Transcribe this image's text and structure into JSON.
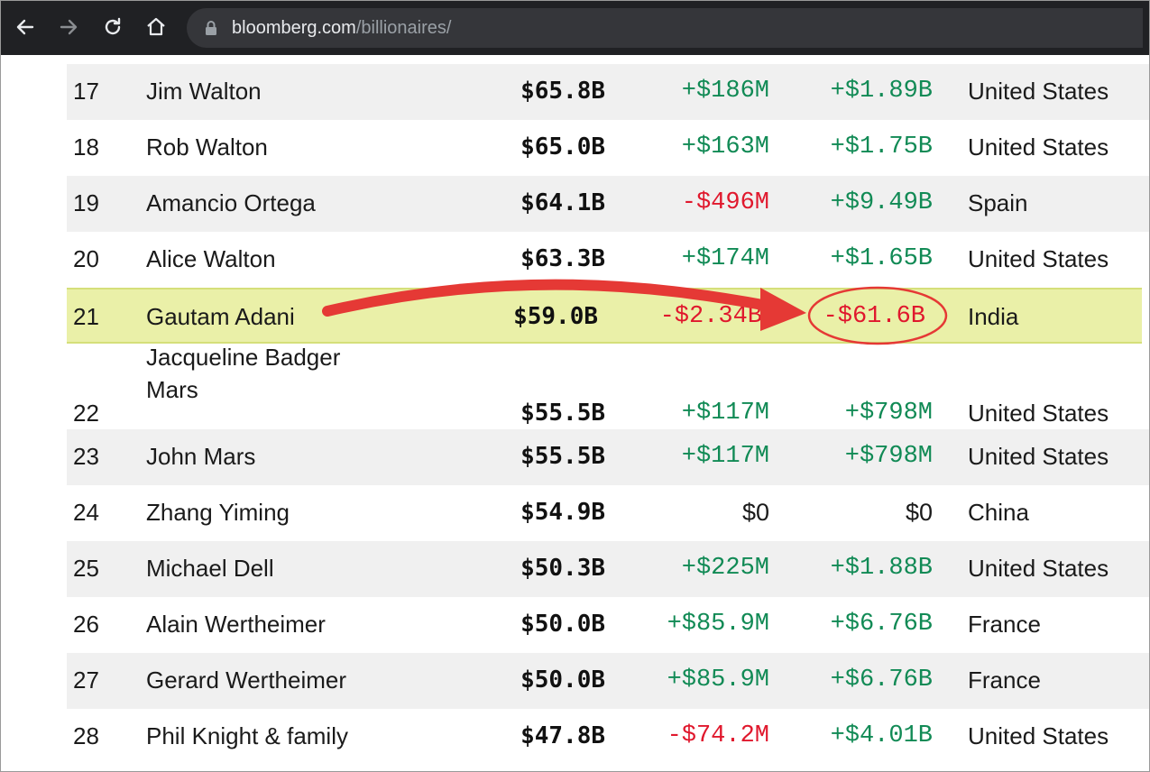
{
  "browser": {
    "url_domain": "bloomberg.com",
    "url_path": "/billionaires/",
    "icons": [
      "back-arrow-icon",
      "forward-arrow-icon",
      "reload-icon",
      "home-icon",
      "lock-icon"
    ]
  },
  "colors": {
    "positive": "#118a55",
    "negative": "#e0182d",
    "highlight": "#eaf0a8",
    "annotation": "#e53935"
  },
  "rows": [
    {
      "rank": "17",
      "name": "Jim Walton",
      "name2": "",
      "net_worth": "$65.8B",
      "last_change": "+$186M",
      "ytd_change": "+$1.89B",
      "country": "United States"
    },
    {
      "rank": "18",
      "name": "Rob Walton",
      "name2": "",
      "net_worth": "$65.0B",
      "last_change": "+$163M",
      "ytd_change": "+$1.75B",
      "country": "United States"
    },
    {
      "rank": "19",
      "name": "Amancio Ortega",
      "name2": "",
      "net_worth": "$64.1B",
      "last_change": "-$496M",
      "ytd_change": "+$9.49B",
      "country": "Spain"
    },
    {
      "rank": "20",
      "name": "Alice Walton",
      "name2": "",
      "net_worth": "$63.3B",
      "last_change": "+$174M",
      "ytd_change": "+$1.65B",
      "country": "United States"
    },
    {
      "rank": "21",
      "name": "Gautam Adani",
      "name2": "",
      "net_worth": "$59.0B",
      "last_change": "-$2.34B",
      "ytd_change": "-$61.6B",
      "country": "India"
    },
    {
      "rank": "22",
      "name": "Jacqueline Badger",
      "name2": "Mars",
      "net_worth": "$55.5B",
      "last_change": "+$117M",
      "ytd_change": "+$798M",
      "country": "United States"
    },
    {
      "rank": "23",
      "name": "John Mars",
      "name2": "",
      "net_worth": "$55.5B",
      "last_change": "+$117M",
      "ytd_change": "+$798M",
      "country": "United States"
    },
    {
      "rank": "24",
      "name": "Zhang Yiming",
      "name2": "",
      "net_worth": "$54.9B",
      "last_change": "$0",
      "ytd_change": "$0",
      "country": "China"
    },
    {
      "rank": "25",
      "name": "Michael Dell",
      "name2": "",
      "net_worth": "$50.3B",
      "last_change": "+$225M",
      "ytd_change": "+$1.88B",
      "country": "United States"
    },
    {
      "rank": "26",
      "name": "Alain Wertheimer",
      "name2": "",
      "net_worth": "$50.0B",
      "last_change": "+$85.9M",
      "ytd_change": "+$6.76B",
      "country": "France"
    },
    {
      "rank": "27",
      "name": "Gerard Wertheimer",
      "name2": "",
      "net_worth": "$50.0B",
      "last_change": "+$85.9M",
      "ytd_change": "+$6.76B",
      "country": "France"
    },
    {
      "rank": "28",
      "name": "Phil Knight & family",
      "name2": "",
      "net_worth": "$47.8B",
      "last_change": "-$74.2M",
      "ytd_change": "+$4.01B",
      "country": "United States"
    }
  ]
}
